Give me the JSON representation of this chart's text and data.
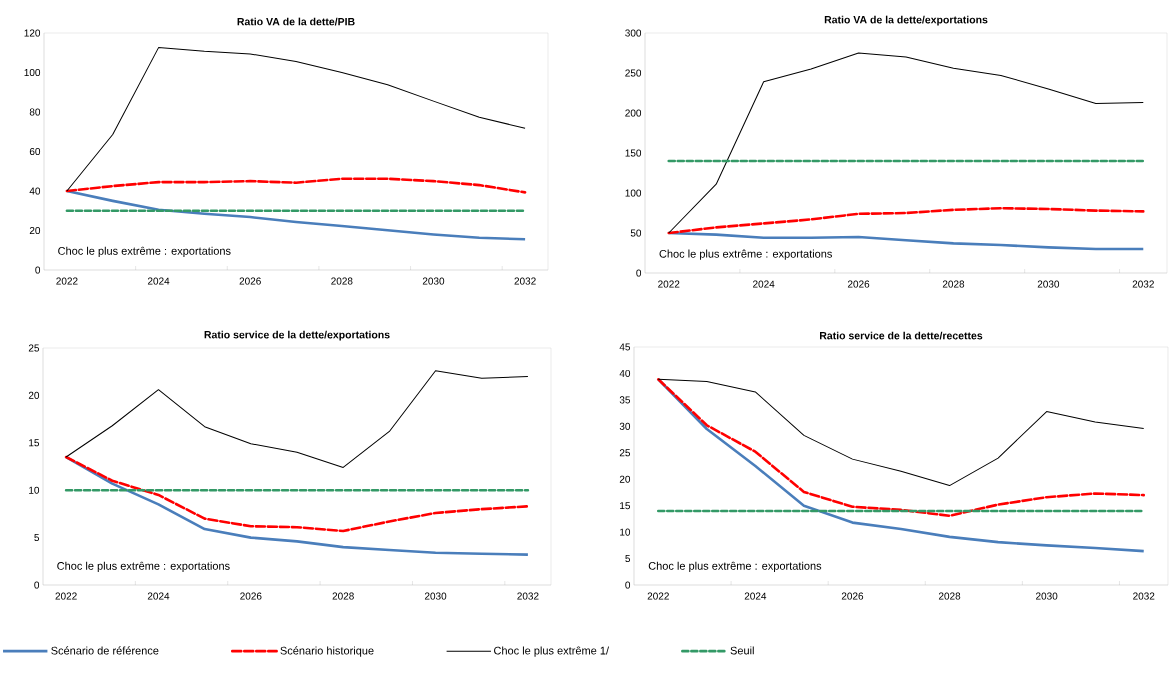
{
  "chart_data": [
    {
      "type": "line",
      "title": "Ratio VA de la dette/PIB",
      "categories": [
        "2022",
        null,
        "2024",
        null,
        "2026",
        null,
        "2028",
        null,
        "2030",
        null,
        "2032"
      ],
      "ylim": [
        0,
        120
      ],
      "yticks": [
        0,
        20,
        40,
        60,
        80,
        100,
        120
      ],
      "annotations": [
        "Choc le plus extrême : exportations"
      ],
      "series": [
        {
          "color": "#4a7ebb",
          "line_style": "solid",
          "values": [
            40,
            35,
            30.5,
            28.5,
            26.8,
            24.3,
            22.3,
            20.1,
            18,
            16.3,
            15.6
          ]
        },
        {
          "color": "#ff0000",
          "line_style": "dashed",
          "values": [
            40,
            42.5,
            44.5,
            44.5,
            45,
            44.2,
            46.2,
            46.2,
            45,
            43,
            39.3
          ]
        },
        {
          "color": "#000000",
          "line_style": "solid",
          "values": [
            40,
            68.6,
            112.6,
            110.7,
            109.4,
            105.6,
            100,
            93.8,
            85.5,
            77.3,
            71.8
          ]
        },
        {
          "color": "#339966",
          "line_style": "dashed",
          "values": [
            30,
            30,
            30,
            30,
            30,
            30,
            30,
            30,
            30,
            30,
            30
          ]
        }
      ]
    },
    {
      "type": "line",
      "title": "Ratio VA de la dette/exportations",
      "categories": [
        "2022",
        null,
        "2024",
        null,
        "2026",
        null,
        "2028",
        null,
        "2030",
        null,
        "2032"
      ],
      "ylim": [
        0,
        300
      ],
      "yticks": [
        0,
        50,
        100,
        150,
        200,
        250,
        300
      ],
      "annotations": [
        "Choc le plus extrême : exportations"
      ],
      "series": [
        {
          "color": "#4a7ebb",
          "line_style": "solid",
          "values": [
            50,
            48,
            44,
            44,
            45,
            41,
            37,
            35,
            32,
            30,
            30
          ]
        },
        {
          "color": "#ff0000",
          "line_style": "dashed",
          "values": [
            50,
            57,
            62,
            67,
            74,
            75,
            79,
            81,
            80,
            78,
            77
          ]
        },
        {
          "color": "#000000",
          "line_style": "solid",
          "values": [
            50,
            111,
            239,
            255,
            275,
            270,
            256,
            247,
            230,
            212,
            213
          ]
        },
        {
          "color": "#339966",
          "line_style": "dashed",
          "values": [
            140,
            140,
            140,
            140,
            140,
            140,
            140,
            140,
            140,
            140,
            140
          ]
        }
      ]
    },
    {
      "type": "line",
      "title": "Ratio service de la dette/exportations",
      "categories": [
        "2022",
        null,
        "2024",
        null,
        "2026",
        null,
        "2028",
        null,
        "2030",
        null,
        "2032"
      ],
      "ylim": [
        0,
        25
      ],
      "yticks": [
        0,
        5,
        10,
        15,
        20,
        25
      ],
      "annotations": [
        "Choc le plus extrême : exportations"
      ],
      "series": [
        {
          "color": "#4a7ebb",
          "line_style": "solid",
          "values": [
            13.5,
            10.7,
            8.5,
            5.9,
            5.0,
            4.6,
            4.0,
            3.7,
            3.4,
            3.3,
            3.2
          ]
        },
        {
          "color": "#ff0000",
          "line_style": "dashed",
          "values": [
            13.5,
            11.0,
            9.5,
            7.0,
            6.2,
            6.1,
            5.7,
            6.7,
            7.6,
            8.0,
            8.3
          ]
        },
        {
          "color": "#000000",
          "line_style": "solid",
          "values": [
            13.5,
            16.8,
            20.6,
            16.7,
            14.9,
            14.0,
            12.4,
            16.2,
            22.6,
            21.8,
            22.0
          ]
        },
        {
          "color": "#339966",
          "line_style": "dashed",
          "values": [
            10,
            10,
            10,
            10,
            10,
            10,
            10,
            10,
            10,
            10,
            10
          ]
        }
      ]
    },
    {
      "type": "line",
      "title": "Ratio service de la dette/recettes",
      "categories": [
        "2022",
        null,
        "2024",
        null,
        "2026",
        null,
        "2028",
        null,
        "2030",
        null,
        "2032"
      ],
      "ylim": [
        0,
        45
      ],
      "yticks": [
        0,
        5,
        10,
        15,
        20,
        25,
        30,
        35,
        40,
        45
      ],
      "annotations": [
        "Choc le plus extrême : exportations"
      ],
      "legend": "bottom",
      "series": [
        {
          "name": "Scénario de référence",
          "color": "#4a7ebb",
          "line_style": "solid",
          "values": [
            38.9,
            29.5,
            22.5,
            15.0,
            11.8,
            10.6,
            9.1,
            8.1,
            7.5,
            7.0,
            6.4
          ]
        },
        {
          "name": "Scénario historique",
          "color": "#ff0000",
          "line_style": "dashed",
          "values": [
            38.9,
            30.2,
            25.2,
            17.6,
            14.8,
            14.2,
            13.1,
            15.2,
            16.6,
            17.3,
            17.0
          ]
        },
        {
          "name": "Choc le plus extrême 1/",
          "color": "#000000",
          "line_style": "solid",
          "values": [
            38.9,
            38.5,
            36.5,
            28.3,
            23.8,
            21.5,
            18.8,
            24.0,
            32.8,
            30.8,
            29.6
          ]
        },
        {
          "name": "Seuil",
          "color": "#339966",
          "line_style": "dashed",
          "values": [
            14,
            14,
            14,
            14,
            14,
            14,
            14,
            14,
            14,
            14,
            14
          ]
        }
      ]
    }
  ]
}
